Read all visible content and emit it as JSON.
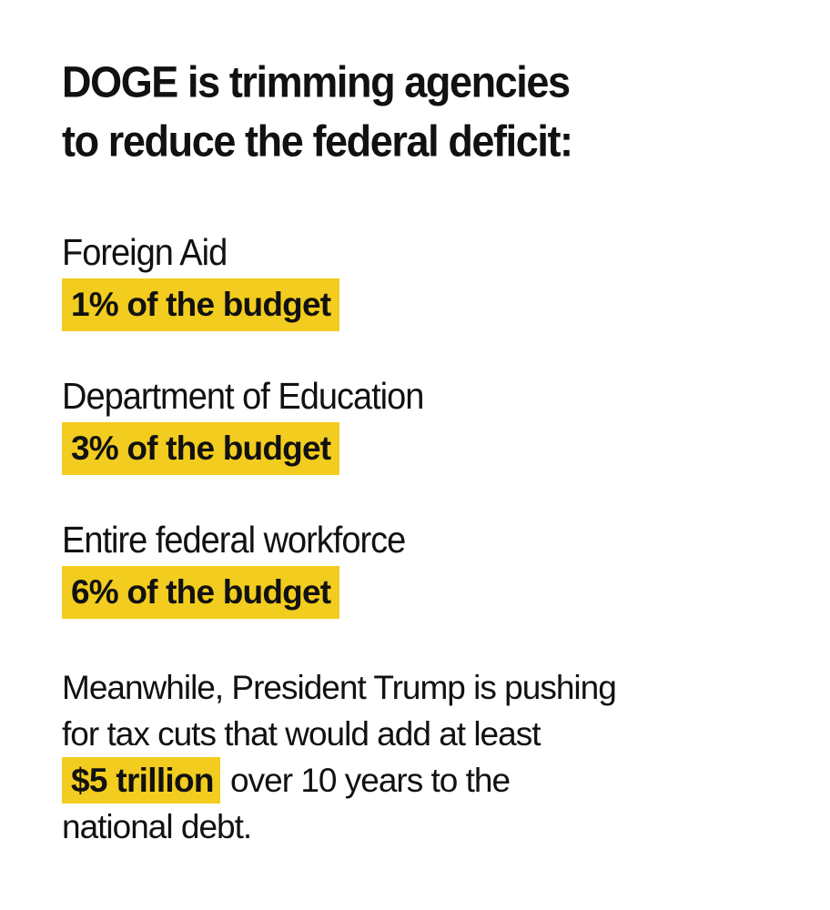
{
  "title": {
    "line1": "DOGE is trimming agencies",
    "line2": "to reduce the federal deficit:"
  },
  "items": [
    {
      "label": "Foreign Aid",
      "value": "1% of the budget",
      "percent": 1
    },
    {
      "label": "Department of Education",
      "value": "3% of the budget",
      "percent": 3
    },
    {
      "label": "Entire federal workforce",
      "value": "6% of the budget",
      "percent": 6
    }
  ],
  "note": {
    "line1": "Meanwhile, President Trump is pushing",
    "line2": "for tax cuts that would add at least",
    "highlight": "$5 trillion",
    "line3_rest": " over 10 years to the",
    "line4": "national debt."
  },
  "colors": {
    "highlight": "#f2cc1f",
    "text": "#111111",
    "background": "#ffffff"
  }
}
